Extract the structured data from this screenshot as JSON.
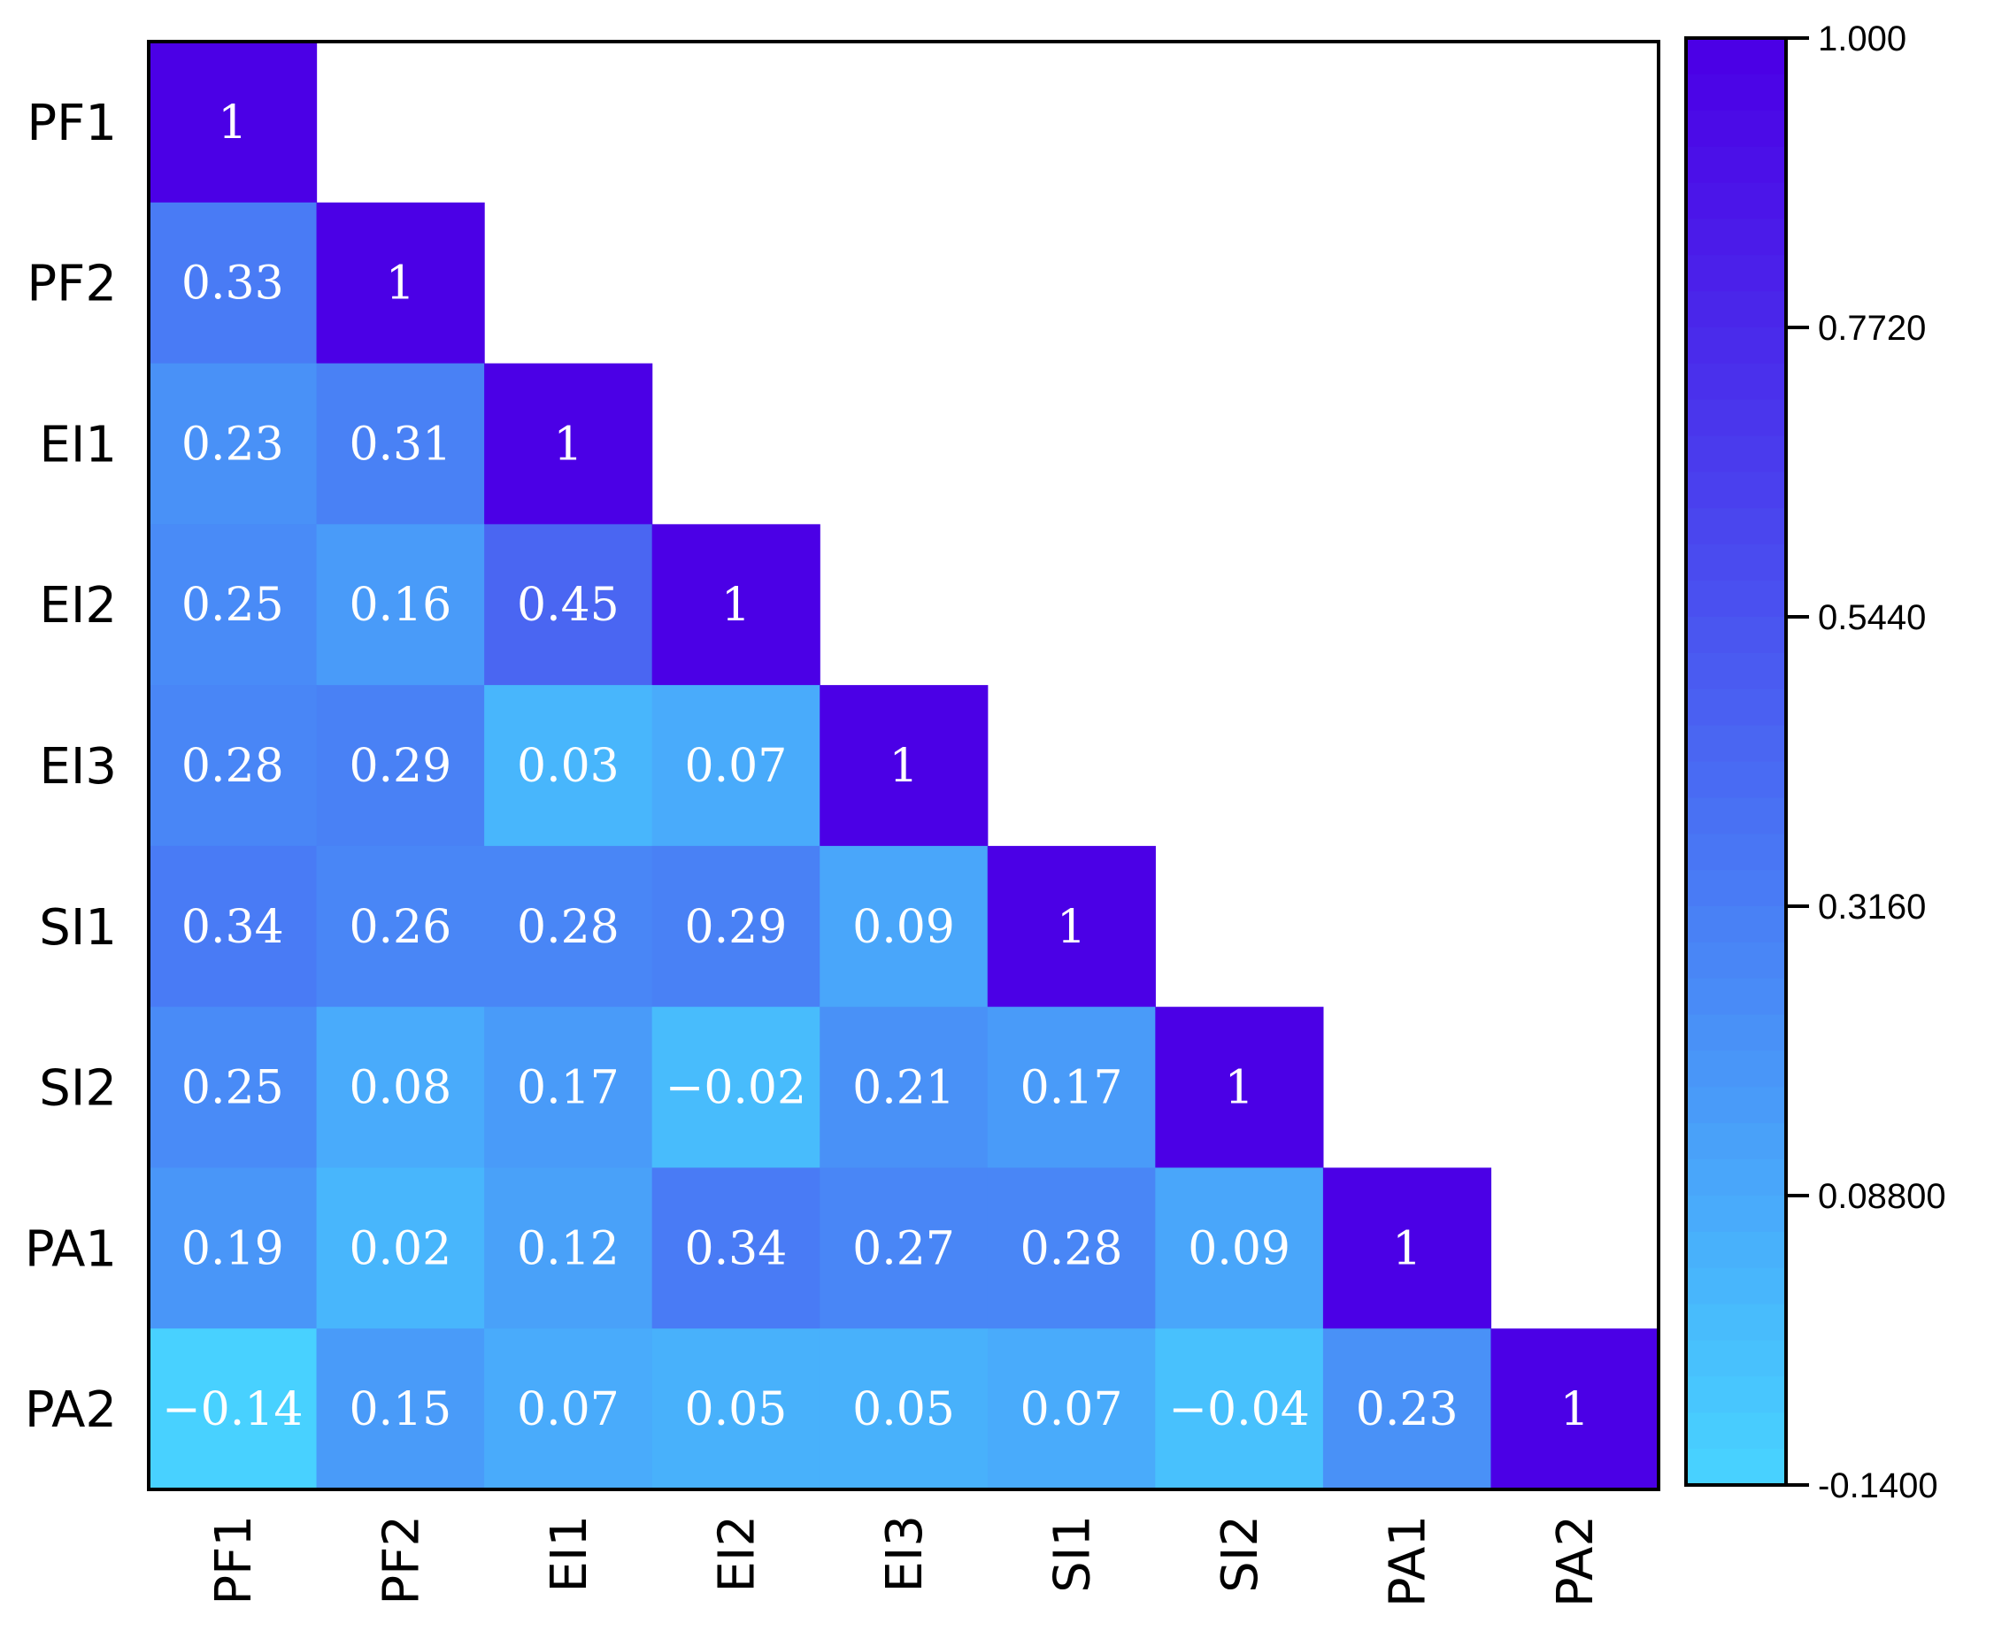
{
  "chart_data": {
    "type": "heatmap",
    "title": "",
    "xlabel": "",
    "ylabel": "",
    "row_labels": [
      "PF1",
      "PF2",
      "EI1",
      "EI2",
      "EI3",
      "SI1",
      "SI2",
      "PA1",
      "PA2"
    ],
    "col_labels": [
      "PF1",
      "PF2",
      "EI1",
      "EI2",
      "EI3",
      "SI1",
      "SI2",
      "PA1",
      "PA2"
    ],
    "matrix": [
      [
        1
      ],
      [
        0.33,
        1
      ],
      [
        0.23,
        0.31,
        1
      ],
      [
        0.25,
        0.16,
        0.45,
        1
      ],
      [
        0.28,
        0.29,
        0.03,
        0.07,
        1
      ],
      [
        0.34,
        0.26,
        0.28,
        0.29,
        0.09,
        1
      ],
      [
        0.25,
        0.08,
        0.17,
        -0.02,
        0.21,
        0.17,
        1
      ],
      [
        0.19,
        0.02,
        0.12,
        0.34,
        0.27,
        0.28,
        0.09,
        1
      ],
      [
        -0.14,
        0.15,
        0.07,
        0.05,
        0.05,
        0.07,
        -0.04,
        0.23,
        1
      ]
    ],
    "cell_labels": [
      [
        "1"
      ],
      [
        "0.33",
        "1"
      ],
      [
        "0.23",
        "0.31",
        "1"
      ],
      [
        "0.25",
        "0.16",
        "0.45",
        "1"
      ],
      [
        "0.28",
        "0.29",
        "0.03",
        "0.07",
        "1"
      ],
      [
        "0.34",
        "0.26",
        "0.28",
        "0.29",
        "0.09",
        "1"
      ],
      [
        "0.25",
        "0.08",
        "0.17",
        "−0.02",
        "0.21",
        "0.17",
        "1"
      ],
      [
        "0.19",
        "0.02",
        "0.12",
        "0.34",
        "0.27",
        "0.28",
        "0.09",
        "1"
      ],
      [
        "−0.14",
        "0.15",
        "0.07",
        "0.05",
        "0.05",
        "0.07",
        "−0.04",
        "0.23",
        "1"
      ]
    ],
    "colorbar": {
      "min": -0.14,
      "max": 1.0,
      "ticks": [
        1.0,
        0.772,
        0.544,
        0.316,
        0.088,
        -0.14
      ],
      "tick_labels": [
        "1.000",
        "0.7720",
        "0.5440",
        "0.3160",
        "0.08800",
        "-0.1400"
      ],
      "levels": 40,
      "color_low": "#48D1FF",
      "color_high": "#4B00E6"
    },
    "grid": false,
    "legend": "right"
  }
}
